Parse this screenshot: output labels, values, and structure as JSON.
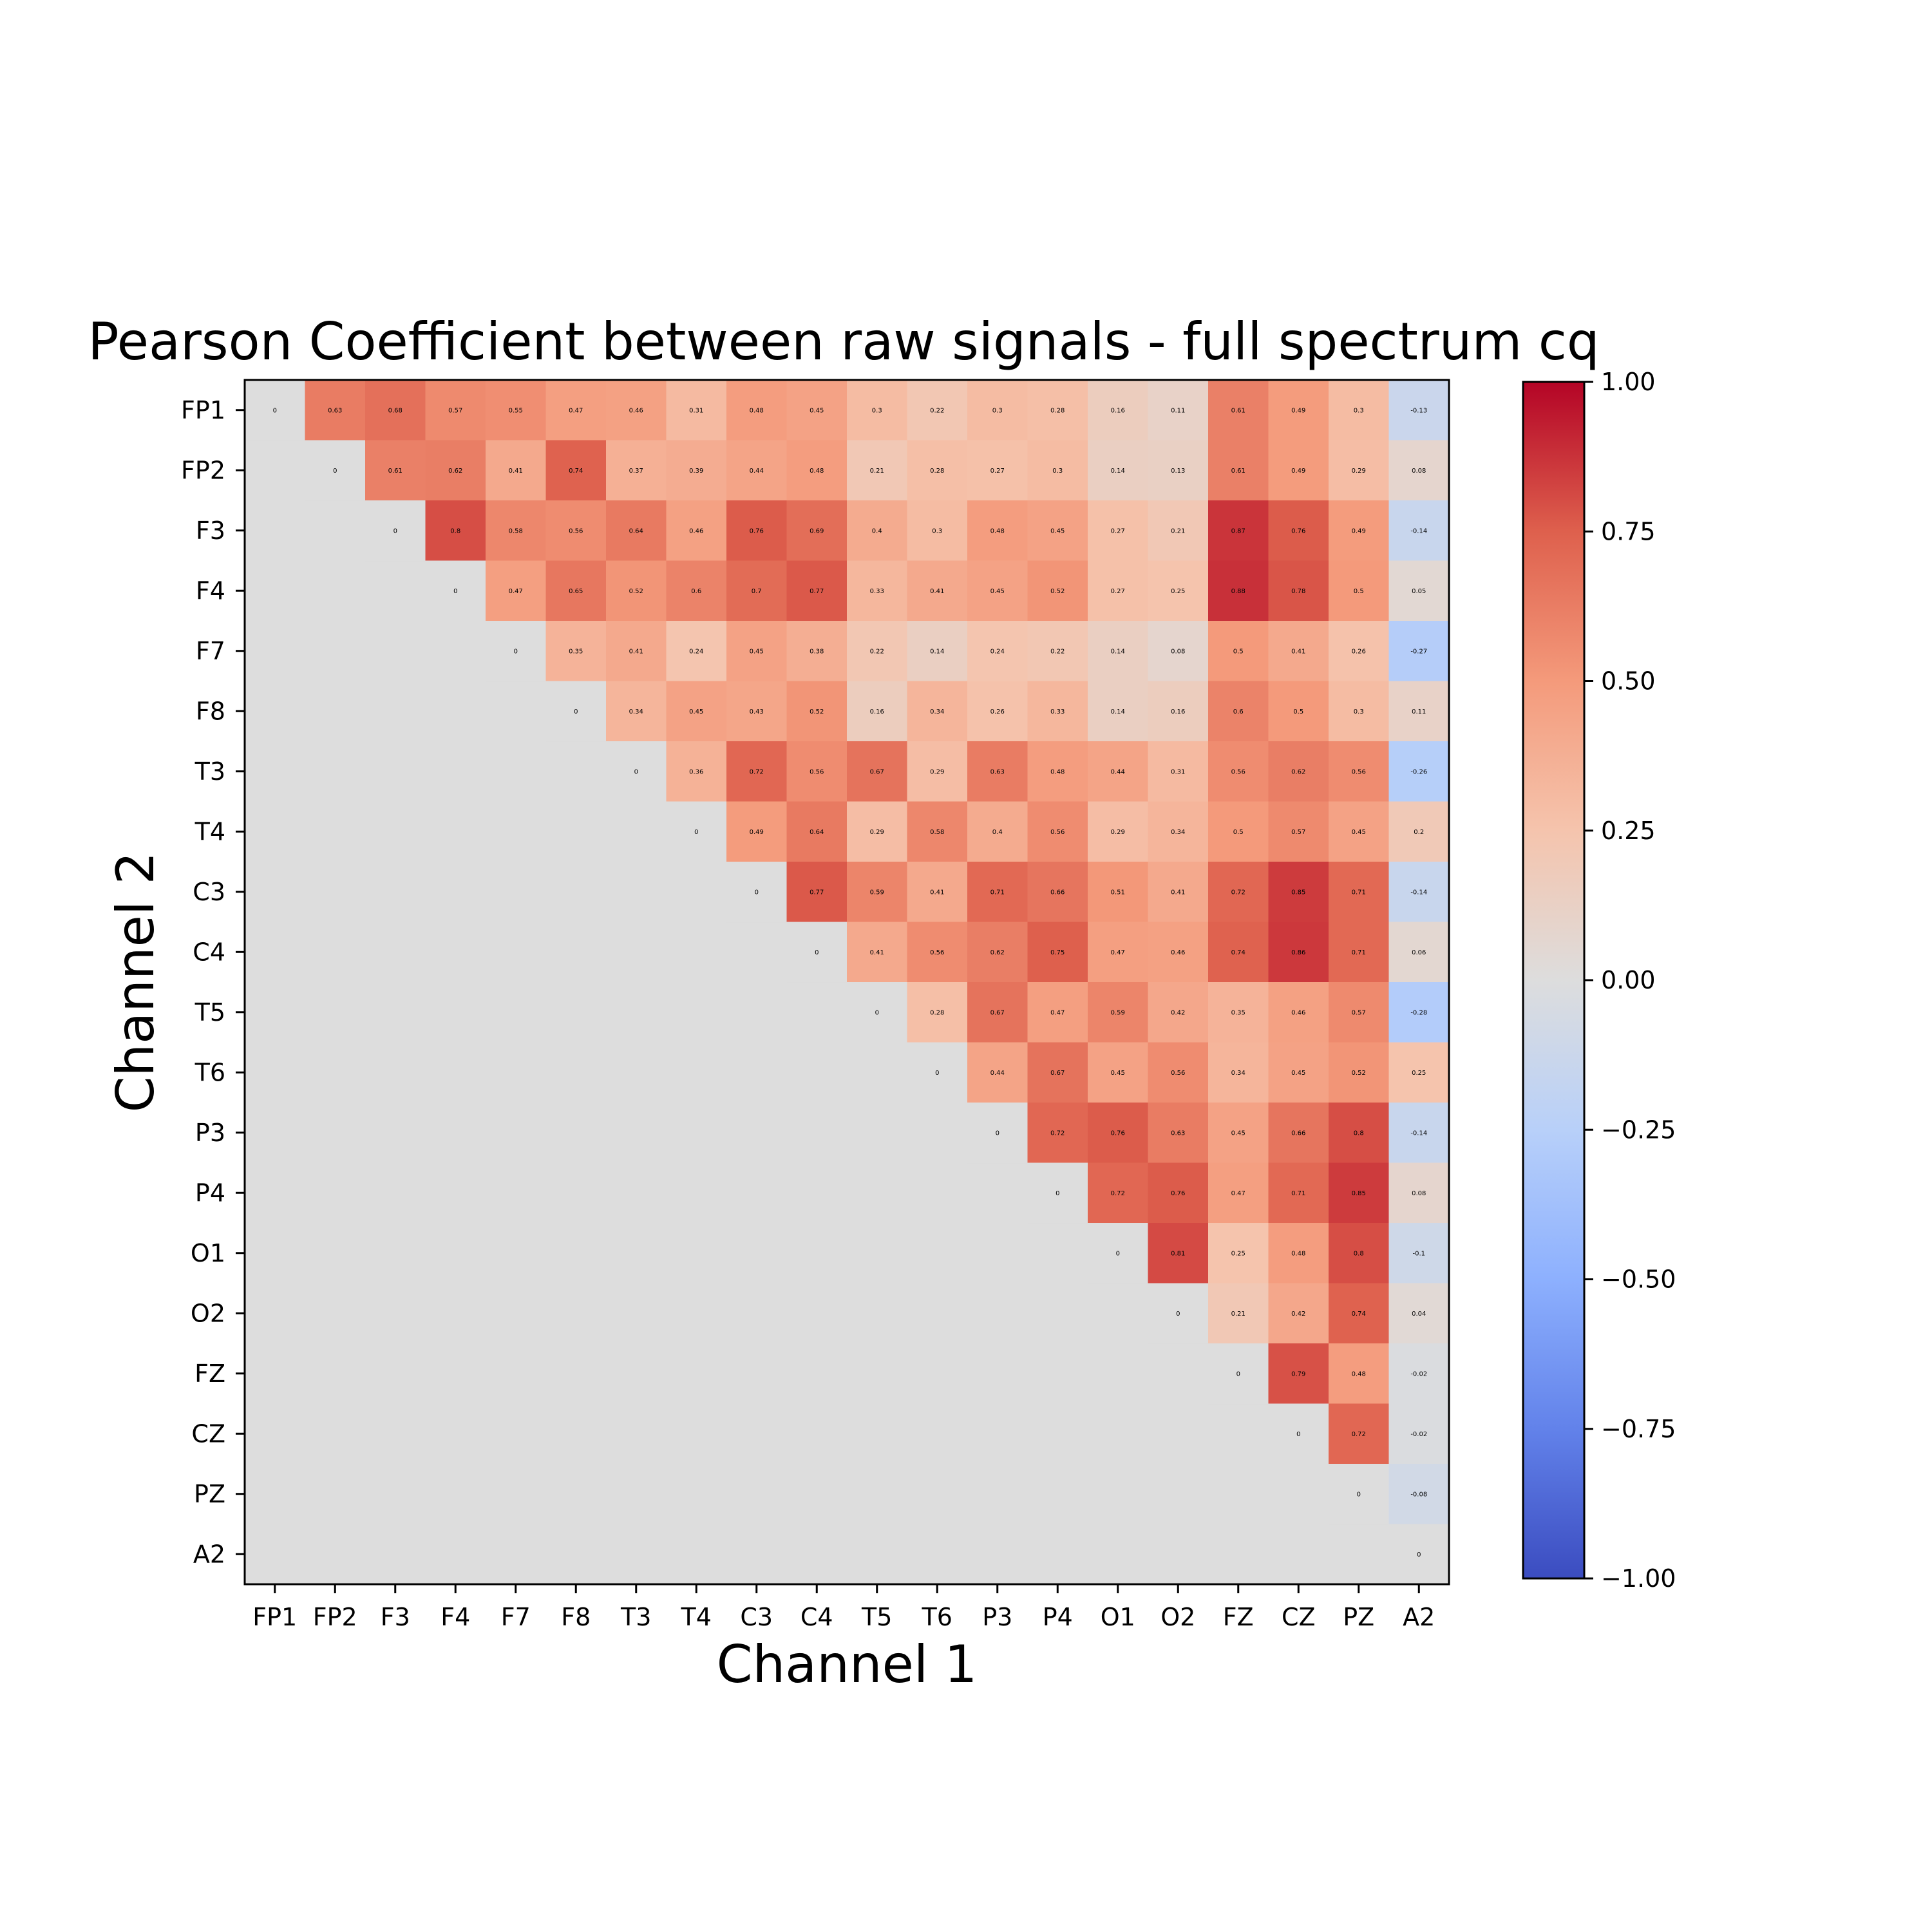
{
  "chart_data": {
    "type": "heatmap",
    "title": "Pearson Coefficient between raw signals - full spectrum cq",
    "xlabel": "Channel 1",
    "ylabel": "Channel 2",
    "x_categories": [
      "FP1",
      "FP2",
      "F3",
      "F4",
      "F7",
      "F8",
      "T3",
      "T4",
      "C3",
      "C4",
      "T5",
      "T6",
      "P3",
      "P4",
      "O1",
      "O2",
      "FZ",
      "CZ",
      "PZ",
      "A2"
    ],
    "y_categories": [
      "FP1",
      "FP2",
      "F3",
      "F4",
      "F7",
      "F8",
      "T3",
      "T4",
      "C3",
      "C4",
      "T5",
      "T6",
      "P3",
      "P4",
      "O1",
      "O2",
      "FZ",
      "CZ",
      "PZ",
      "A2"
    ],
    "masked": "lower triangle (below diagonal) shown in neutral gray",
    "values": [
      [
        0.0,
        0.63,
        0.68,
        0.57,
        0.55,
        0.47,
        0.46,
        0.31,
        0.48,
        0.45,
        0.3,
        0.22,
        0.3,
        0.28,
        0.16,
        0.11,
        0.61,
        0.49,
        0.3,
        -0.13
      ],
      [
        null,
        0.0,
        0.61,
        0.62,
        0.41,
        0.74,
        0.37,
        0.39,
        0.44,
        0.48,
        0.21,
        0.28,
        0.27,
        0.3,
        0.14,
        0.13,
        0.61,
        0.49,
        0.29,
        0.08
      ],
      [
        null,
        null,
        0.0,
        0.8,
        0.58,
        0.56,
        0.64,
        0.46,
        0.76,
        0.69,
        0.4,
        0.3,
        0.48,
        0.45,
        0.27,
        0.21,
        0.87,
        0.76,
        0.49,
        -0.14
      ],
      [
        null,
        null,
        null,
        0.0,
        0.47,
        0.65,
        0.52,
        0.6,
        0.7,
        0.77,
        0.33,
        0.41,
        0.45,
        0.52,
        0.27,
        0.25,
        0.88,
        0.78,
        0.5,
        0.05
      ],
      [
        null,
        null,
        null,
        null,
        0.0,
        0.35,
        0.41,
        0.24,
        0.45,
        0.38,
        0.22,
        0.14,
        0.24,
        0.22,
        0.14,
        0.08,
        0.5,
        0.41,
        0.26,
        -0.27
      ],
      [
        null,
        null,
        null,
        null,
        null,
        0.0,
        0.34,
        0.45,
        0.43,
        0.52,
        0.16,
        0.34,
        0.26,
        0.33,
        0.14,
        0.16,
        0.6,
        0.5,
        0.3,
        0.11
      ],
      [
        null,
        null,
        null,
        null,
        null,
        null,
        0.0,
        0.36,
        0.72,
        0.56,
        0.67,
        0.29,
        0.63,
        0.48,
        0.44,
        0.31,
        0.56,
        0.62,
        0.56,
        -0.26
      ],
      [
        null,
        null,
        null,
        null,
        null,
        null,
        null,
        0.0,
        0.49,
        0.64,
        0.29,
        0.58,
        0.4,
        0.56,
        0.29,
        0.34,
        0.5,
        0.57,
        0.45,
        0.2
      ],
      [
        null,
        null,
        null,
        null,
        null,
        null,
        null,
        null,
        0.0,
        0.77,
        0.59,
        0.41,
        0.71,
        0.66,
        0.51,
        0.41,
        0.72,
        0.85,
        0.71,
        -0.14
      ],
      [
        null,
        null,
        null,
        null,
        null,
        null,
        null,
        null,
        null,
        0.0,
        0.41,
        0.56,
        0.62,
        0.75,
        0.47,
        0.46,
        0.74,
        0.86,
        0.71,
        0.06
      ],
      [
        null,
        null,
        null,
        null,
        null,
        null,
        null,
        null,
        null,
        null,
        0.0,
        0.28,
        0.67,
        0.47,
        0.59,
        0.42,
        0.35,
        0.46,
        0.57,
        -0.28
      ],
      [
        null,
        null,
        null,
        null,
        null,
        null,
        null,
        null,
        null,
        null,
        null,
        0.0,
        0.44,
        0.67,
        0.45,
        0.56,
        0.34,
        0.45,
        0.52,
        0.25
      ],
      [
        null,
        null,
        null,
        null,
        null,
        null,
        null,
        null,
        null,
        null,
        null,
        null,
        0.0,
        0.72,
        0.76,
        0.63,
        0.45,
        0.66,
        0.8,
        -0.14
      ],
      [
        null,
        null,
        null,
        null,
        null,
        null,
        null,
        null,
        null,
        null,
        null,
        null,
        null,
        0.0,
        0.72,
        0.76,
        0.47,
        0.71,
        0.85,
        0.08
      ],
      [
        null,
        null,
        null,
        null,
        null,
        null,
        null,
        null,
        null,
        null,
        null,
        null,
        null,
        null,
        0.0,
        0.81,
        0.25,
        0.48,
        0.8,
        -0.1
      ],
      [
        null,
        null,
        null,
        null,
        null,
        null,
        null,
        null,
        null,
        null,
        null,
        null,
        null,
        null,
        null,
        0.0,
        0.21,
        0.42,
        0.74,
        0.04
      ],
      [
        null,
        null,
        null,
        null,
        null,
        null,
        null,
        null,
        null,
        null,
        null,
        null,
        null,
        null,
        null,
        null,
        0.0,
        0.79,
        0.48,
        -0.02
      ],
      [
        null,
        null,
        null,
        null,
        null,
        null,
        null,
        null,
        null,
        null,
        null,
        null,
        null,
        null,
        null,
        null,
        null,
        0.0,
        0.72,
        -0.02
      ],
      [
        null,
        null,
        null,
        null,
        null,
        null,
        null,
        null,
        null,
        null,
        null,
        null,
        null,
        null,
        null,
        null,
        null,
        null,
        0.0,
        -0.08
      ],
      [
        null,
        null,
        null,
        null,
        null,
        null,
        null,
        null,
        null,
        null,
        null,
        null,
        null,
        null,
        null,
        null,
        null,
        null,
        null,
        0.0
      ]
    ],
    "colorbar": {
      "range": [
        -1.0,
        1.0
      ],
      "colormap": "coolwarm",
      "tick_values": [
        1.0,
        0.75,
        0.5,
        0.25,
        0.0,
        -0.25,
        -0.5,
        -0.75,
        -1.0
      ],
      "tick_labels": [
        "1.00",
        "0.75",
        "0.50",
        "0.25",
        "0.00",
        "−0.25",
        "−0.50",
        "−0.75",
        "−1.00"
      ]
    }
  }
}
